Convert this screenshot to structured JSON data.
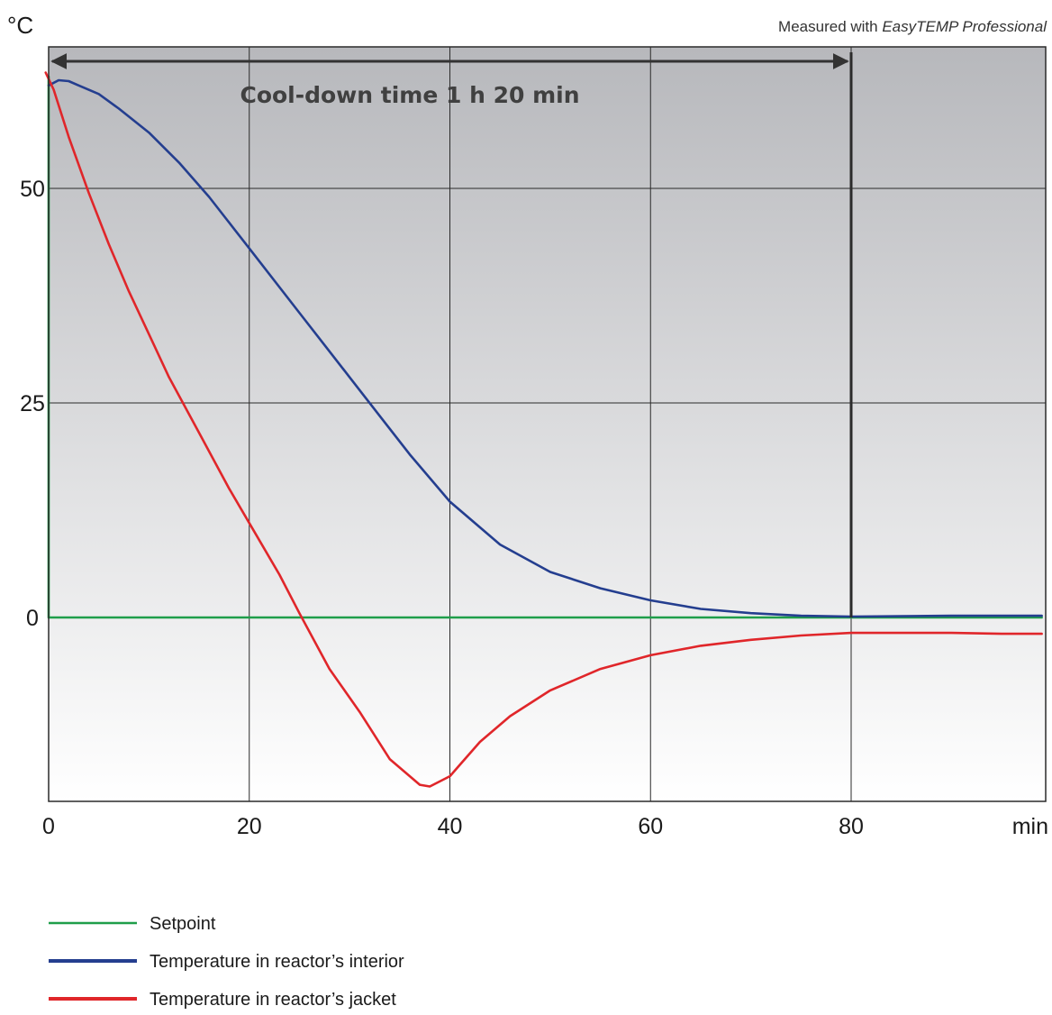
{
  "chart_data": {
    "type": "line",
    "measured_prefix": "Measured with ",
    "measured_software": "EasyTEMP Professional",
    "ylabel": "°C",
    "xlabel": "min",
    "annotation": "Cool-down time 1 h 20 min",
    "cooldown_end_x": 80,
    "xlim": [
      0,
      99
    ],
    "ylim": [
      -21.5,
      67
    ],
    "x_ticks": [
      0,
      20,
      40,
      60,
      80
    ],
    "y_ticks": [
      0,
      25,
      50
    ],
    "grid": true,
    "legend_position": "bottom-left",
    "background": [
      "#b7b8bc",
      "#ffffff"
    ],
    "series": [
      {
        "name": "Setpoint",
        "color": "#1f9e4a",
        "points": [
          [
            0,
            63
          ],
          [
            0,
            0
          ],
          [
            99,
            0
          ]
        ]
      },
      {
        "name": "Temperature in reactor’s interior",
        "color": "#243e8f",
        "points": [
          [
            0,
            62
          ],
          [
            1,
            62.6
          ],
          [
            2,
            62.5
          ],
          [
            3,
            62
          ],
          [
            5,
            61
          ],
          [
            7,
            59.3
          ],
          [
            10,
            56.5
          ],
          [
            13,
            53
          ],
          [
            16,
            49
          ],
          [
            20,
            43
          ],
          [
            25,
            35.5
          ],
          [
            30,
            28
          ],
          [
            33,
            23.5
          ],
          [
            36,
            19
          ],
          [
            40,
            13.5
          ],
          [
            45,
            8.5
          ],
          [
            50,
            5.3
          ],
          [
            55,
            3.4
          ],
          [
            60,
            2
          ],
          [
            65,
            1
          ],
          [
            70,
            0.5
          ],
          [
            75,
            0.2
          ],
          [
            80,
            0.1
          ],
          [
            85,
            0.15
          ],
          [
            90,
            0.2
          ],
          [
            99,
            0.2
          ]
        ]
      },
      {
        "name": "Temperature in reactor’s jacket",
        "color": "#e0262a",
        "points": [
          [
            -0.3,
            63.5
          ],
          [
            0.5,
            61.5
          ],
          [
            2,
            56
          ],
          [
            4,
            49.5
          ],
          [
            6,
            43.5
          ],
          [
            8,
            38
          ],
          [
            10,
            33
          ],
          [
            12,
            28
          ],
          [
            15,
            21.5
          ],
          [
            18,
            15
          ],
          [
            20,
            11
          ],
          [
            23,
            5
          ],
          [
            25,
            0.5
          ],
          [
            28,
            -6
          ],
          [
            31,
            -11
          ],
          [
            34,
            -16.5
          ],
          [
            37,
            -19.5
          ],
          [
            38,
            -19.7
          ],
          [
            40,
            -18.5
          ],
          [
            43,
            -14.5
          ],
          [
            46,
            -11.5
          ],
          [
            50,
            -8.5
          ],
          [
            55,
            -6
          ],
          [
            60,
            -4.4
          ],
          [
            65,
            -3.3
          ],
          [
            70,
            -2.6
          ],
          [
            75,
            -2.1
          ],
          [
            80,
            -1.8
          ],
          [
            85,
            -1.8
          ],
          [
            90,
            -1.8
          ],
          [
            95,
            -1.9
          ],
          [
            99,
            -1.9
          ]
        ]
      }
    ]
  }
}
